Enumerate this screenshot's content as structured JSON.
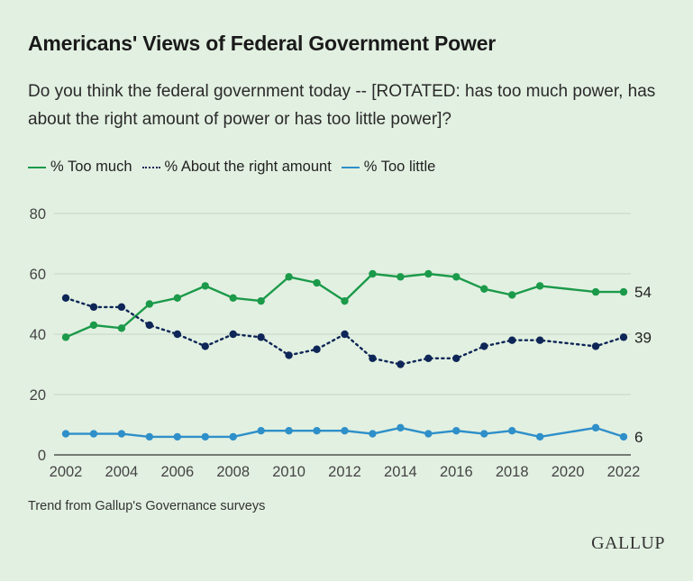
{
  "title": "Americans' Views of Federal Government Power",
  "subtitle": "Do you think the federal government today -- [ROTATED: has too much power, has about the right amount of power or has too little power]?",
  "footnote": "Trend from Gallup's Governance surveys",
  "logo_text": "GALLUP",
  "chart_data": {
    "type": "line",
    "title": "Americans' Views of Federal Government Power",
    "xlabel": "",
    "ylabel": "",
    "xlim": [
      2002,
      2022
    ],
    "ylim": [
      0,
      80
    ],
    "x_ticks": [
      2002,
      2004,
      2006,
      2008,
      2010,
      2012,
      2014,
      2016,
      2018,
      2020,
      2022
    ],
    "y_ticks": [
      0,
      20,
      40,
      60,
      80
    ],
    "grid": "horizontal",
    "legend_position": "top-left",
    "series": [
      {
        "name": "% Too much",
        "color": "#1b9a4a",
        "line_style": "solid",
        "end_label": "54",
        "points": [
          [
            2002,
            39
          ],
          [
            2003,
            43
          ],
          [
            2004,
            42
          ],
          [
            2005,
            50
          ],
          [
            2006,
            52
          ],
          [
            2007,
            56
          ],
          [
            2008,
            52
          ],
          [
            2009,
            51
          ],
          [
            2010,
            59
          ],
          [
            2011,
            57
          ],
          [
            2012,
            51
          ],
          [
            2013,
            60
          ],
          [
            2014,
            59
          ],
          [
            2015,
            60
          ],
          [
            2016,
            59
          ],
          [
            2017,
            55
          ],
          [
            2018,
            53
          ],
          [
            2019,
            56
          ],
          [
            2021,
            54
          ],
          [
            2022,
            54
          ]
        ]
      },
      {
        "name": "% About the right amount",
        "color": "#0e2657",
        "line_style": "dotted",
        "end_label": "39",
        "points": [
          [
            2002,
            52
          ],
          [
            2003,
            49
          ],
          [
            2004,
            49
          ],
          [
            2005,
            43
          ],
          [
            2006,
            40
          ],
          [
            2007,
            36
          ],
          [
            2008,
            40
          ],
          [
            2009,
            39
          ],
          [
            2010,
            33
          ],
          [
            2011,
            35
          ],
          [
            2012,
            40
          ],
          [
            2013,
            32
          ],
          [
            2014,
            30
          ],
          [
            2015,
            32
          ],
          [
            2016,
            32
          ],
          [
            2017,
            36
          ],
          [
            2018,
            38
          ],
          [
            2019,
            38
          ],
          [
            2021,
            36
          ],
          [
            2022,
            39
          ]
        ]
      },
      {
        "name": "% Too little",
        "color": "#2e8fc9",
        "line_style": "solid",
        "end_label": "6",
        "points": [
          [
            2002,
            7
          ],
          [
            2003,
            7
          ],
          [
            2004,
            7
          ],
          [
            2005,
            6
          ],
          [
            2006,
            6
          ],
          [
            2007,
            6
          ],
          [
            2008,
            6
          ],
          [
            2009,
            8
          ],
          [
            2010,
            8
          ],
          [
            2011,
            8
          ],
          [
            2012,
            8
          ],
          [
            2013,
            7
          ],
          [
            2014,
            9
          ],
          [
            2015,
            7
          ],
          [
            2016,
            8
          ],
          [
            2017,
            7
          ],
          [
            2018,
            8
          ],
          [
            2019,
            6
          ],
          [
            2021,
            9
          ],
          [
            2022,
            6
          ]
        ]
      }
    ]
  }
}
